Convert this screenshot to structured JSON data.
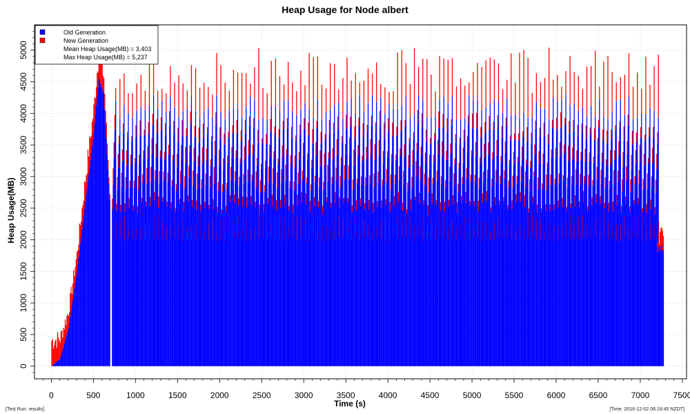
{
  "footer": {
    "left": "[Test Run: results]",
    "right": "[Time: 2016-12-02 06:18:45 NZDT]"
  },
  "chart_data": {
    "type": "bar",
    "title": "Heap Usage for Node albert",
    "xlabel": "Time (s)",
    "ylabel": "Heap Usage(MB)",
    "xlim": [
      -200,
      7550
    ],
    "ylim": [
      -200,
      5400
    ],
    "x_ticks": [
      0,
      500,
      1000,
      1500,
      2000,
      2500,
      3000,
      3500,
      4000,
      4500,
      5000,
      5500,
      6000,
      6500,
      7000,
      7500
    ],
    "y_ticks": [
      0,
      500,
      1000,
      1500,
      2000,
      2500,
      3000,
      3500,
      4000,
      4500,
      5000
    ],
    "grid": true,
    "stacked": true,
    "legend_position": "top-left",
    "series": [
      {
        "name": "Old Generation",
        "color": "#0000ff"
      },
      {
        "name": "New Generation",
        "color": "#ff0000"
      }
    ],
    "annotations": [
      "Mean Heap Usage(MB) = 3,403",
      "Max Heap Usage(MB) = 5,237"
    ],
    "sample_interval_s": 10,
    "cycles": {
      "start_s": 720,
      "end_s": 7200,
      "period_s": 50,
      "old_gen_base_mb": 2100,
      "old_gen_peak_mb": [
        3900,
        4300
      ],
      "new_gen_peak_mb": [
        4300,
        5050
      ],
      "old_gen_floor_mb": 2050
    },
    "ramp": {
      "start_s": 0,
      "end_s": 700,
      "points": [
        {
          "x": 0,
          "old": 0,
          "new": 450
        },
        {
          "x": 100,
          "old": 120,
          "new": 350
        },
        {
          "x": 200,
          "old": 600,
          "new": 300
        },
        {
          "x": 300,
          "old": 1500,
          "new": 300
        },
        {
          "x": 400,
          "old": 2600,
          "new": 400
        },
        {
          "x": 500,
          "old": 3700,
          "new": 400
        },
        {
          "x": 560,
          "old": 4550,
          "new": 450
        },
        {
          "x": 620,
          "old": 4300,
          "new": 300
        },
        {
          "x": 700,
          "old": 2400,
          "new": 100
        }
      ]
    },
    "tail": {
      "start_s": 7200,
      "end_s": 7280,
      "old_mb": 1950,
      "new_mb": 250
    }
  }
}
